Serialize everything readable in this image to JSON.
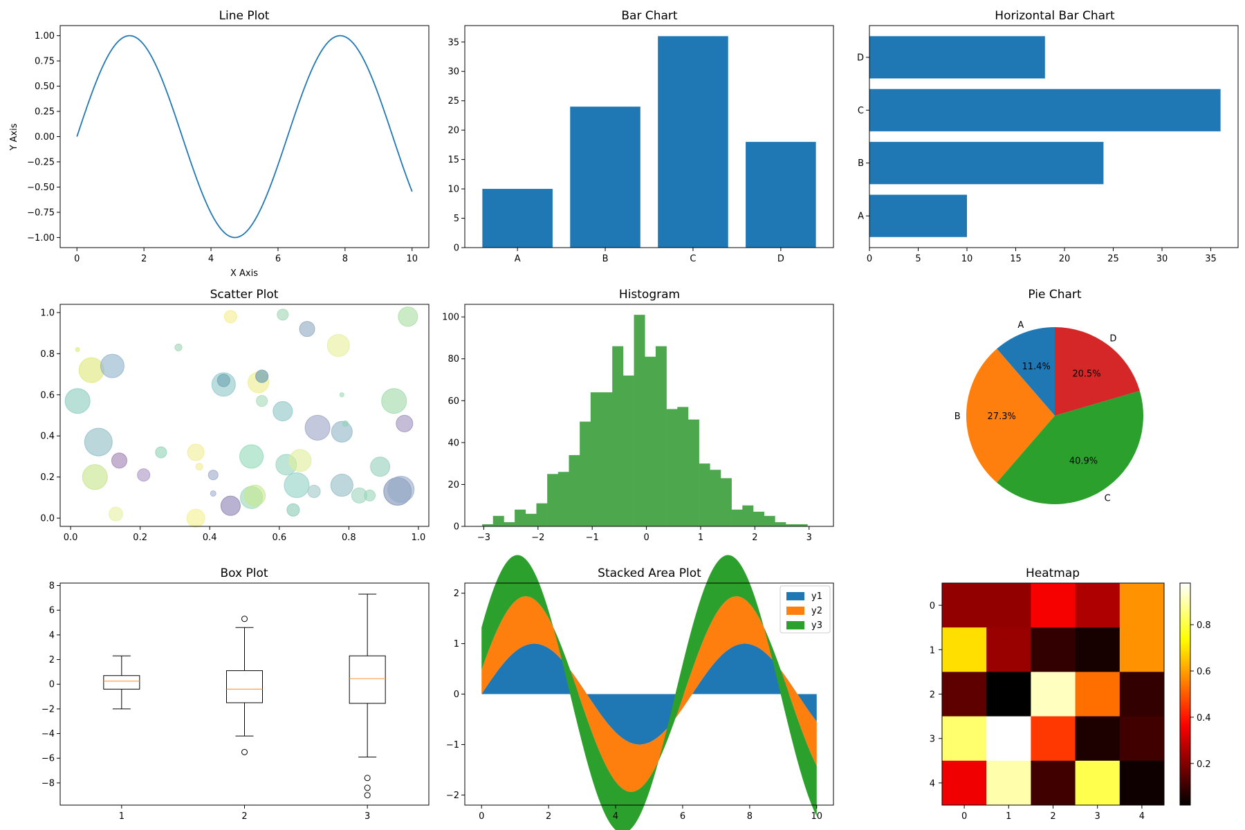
{
  "colors": {
    "blue": "#1f77b4",
    "orange": "#ff7f0e",
    "green": "#2ca02c",
    "red": "#d62728",
    "hist_green": "#4da84d",
    "median": "#ff9f4a"
  },
  "chart_data": [
    {
      "id": "line",
      "type": "line",
      "title": "Line Plot",
      "xlabel": "X Axis",
      "ylabel": "Y Axis",
      "xlim": [
        -0.5,
        10.5
      ],
      "ylim": [
        -1.1,
        1.1
      ],
      "xticks": [
        0,
        2,
        4,
        6,
        8,
        10
      ],
      "yticks": [
        -1.0,
        -0.75,
        -0.5,
        -0.25,
        0.0,
        0.25,
        0.5,
        0.75,
        1.0
      ],
      "ytick_labels": [
        "−1.00",
        "−0.75",
        "−0.50",
        "−0.25",
        "0.00",
        "0.25",
        "0.50",
        "0.75",
        "1.00"
      ],
      "function": "sin(x)",
      "x_range": [
        0,
        10
      ]
    },
    {
      "id": "bar",
      "type": "bar",
      "title": "Bar Chart",
      "categories": [
        "A",
        "B",
        "C",
        "D"
      ],
      "values": [
        10,
        24,
        36,
        18
      ],
      "ylim": [
        0,
        37.8
      ],
      "yticks": [
        0,
        5,
        10,
        15,
        20,
        25,
        30,
        35
      ]
    },
    {
      "id": "hbar",
      "type": "bar",
      "orientation": "horizontal",
      "title": "Horizontal Bar Chart",
      "categories": [
        "A",
        "B",
        "C",
        "D"
      ],
      "values": [
        10,
        24,
        36,
        18
      ],
      "xlim": [
        0,
        37.8
      ],
      "xticks": [
        0,
        5,
        10,
        15,
        20,
        25,
        30,
        35
      ]
    },
    {
      "id": "scatter",
      "type": "scatter",
      "title": "Scatter Plot",
      "xlim": [
        -0.03,
        1.03
      ],
      "ylim": [
        -0.04,
        1.04
      ],
      "xticks": [
        0.0,
        0.2,
        0.4,
        0.6,
        0.8,
        1.0
      ],
      "yticks": [
        0.0,
        0.2,
        0.4,
        0.6,
        0.8,
        1.0
      ],
      "x": [
        0.02,
        0.06,
        0.07,
        0.08,
        0.12,
        0.13,
        0.14,
        0.21,
        0.26,
        0.31,
        0.36,
        0.36,
        0.37,
        0.41,
        0.41,
        0.44,
        0.44,
        0.46,
        0.46,
        0.52,
        0.52,
        0.53,
        0.54,
        0.55,
        0.55,
        0.55,
        0.61,
        0.61,
        0.62,
        0.64,
        0.65,
        0.66,
        0.68,
        0.7,
        0.71,
        0.77,
        0.78,
        0.78,
        0.78,
        0.79,
        0.83,
        0.86,
        0.89,
        0.93,
        0.94,
        0.95,
        0.96,
        0.97,
        0.02
      ],
      "y": [
        0.57,
        0.72,
        0.2,
        0.37,
        0.74,
        0.02,
        0.28,
        0.21,
        0.32,
        0.83,
        0.32,
        0.0,
        0.25,
        0.21,
        0.12,
        0.65,
        0.67,
        0.98,
        0.06,
        0.1,
        0.3,
        0.11,
        0.66,
        0.57,
        0.69,
        0.69,
        0.99,
        0.52,
        0.26,
        0.04,
        0.16,
        0.28,
        0.92,
        0.13,
        0.44,
        0.84,
        0.42,
        0.6,
        0.16,
        0.46,
        0.11,
        0.11,
        0.25,
        0.57,
        0.13,
        0.14,
        0.46,
        0.98,
        0.82
      ],
      "sizes": [
        18,
        18,
        18,
        20,
        17,
        10,
        11,
        9,
        8,
        5,
        12,
        13,
        5,
        7,
        4,
        17,
        9,
        9,
        14,
        16,
        17,
        15,
        15,
        8,
        9,
        9,
        8,
        14,
        15,
        9,
        18,
        16,
        11,
        9,
        18,
        16,
        15,
        3,
        16,
        4,
        11,
        8,
        14,
        18,
        20,
        19,
        12,
        14,
        3
      ],
      "colors": [
        "#88ccbb",
        "#dde877",
        "#c6e48b",
        "#8fbcc4",
        "#8fb2c9",
        "#e7f0a0",
        "#9d7fb0",
        "#a895c4",
        "#8dd4b4",
        "#9ed6b4",
        "#f0ec95",
        "#f4f08c",
        "#f0ec95",
        "#9ba8c9",
        "#a0b0d0",
        "#8fc6c6",
        "#6ba3b3",
        "#f3ed8e",
        "#8b7fb0",
        "#98d6b8",
        "#8fd8b8",
        "#c6e98d",
        "#eded8a",
        "#a6dbb8",
        "#9ddcb4",
        "#7b9eb3",
        "#9ed6b4",
        "#8dc4c4",
        "#95d4bf",
        "#88c9b2",
        "#8fd0c4",
        "#e0ee9a",
        "#90a8c0",
        "#a2c8c8",
        "#9ba3c4",
        "#e6ee9a",
        "#8fb6c6",
        "#9ddcb4",
        "#92bcc6",
        "#8ed4b4",
        "#9cd4be",
        "#9ad6b9",
        "#94cfbd",
        "#9fd8a8",
        "#7c8fb3",
        "#96aac8",
        "#9e90bc",
        "#a8dca0",
        "#dfe87a"
      ]
    },
    {
      "id": "hist",
      "type": "bar",
      "subtype": "histogram",
      "title": "Histogram",
      "bin_start": -3.03,
      "bin_width": 0.2,
      "values": [
        1,
        5,
        2,
        8,
        6,
        11,
        25,
        26,
        34,
        50,
        64,
        64,
        86,
        72,
        101,
        81,
        86,
        56,
        57,
        51,
        30,
        27,
        23,
        8,
        10,
        7,
        5,
        2,
        1,
        1
      ],
      "xlim": [
        -3.35,
        3.45
      ],
      "ylim": [
        0,
        106
      ],
      "xticks": [
        -3,
        -2,
        -1,
        0,
        1,
        2,
        3
      ],
      "xtick_labels": [
        "−3",
        "−2",
        "−1",
        "0",
        "1",
        "2",
        "3"
      ],
      "yticks": [
        0,
        20,
        40,
        60,
        80,
        100
      ]
    },
    {
      "id": "pie",
      "type": "pie",
      "title": "Pie Chart",
      "labels": [
        "A",
        "B",
        "C",
        "D"
      ],
      "values": [
        10,
        24,
        36,
        18
      ],
      "pct_labels": [
        "11.4%",
        "27.3%",
        "40.9%",
        "20.5%"
      ],
      "start_angle": 90
    },
    {
      "id": "box",
      "type": "box",
      "title": "Box Plot",
      "categories": [
        "1",
        "2",
        "3"
      ],
      "boxes": [
        {
          "whislo": -2.0,
          "q1": -0.4,
          "med": 0.25,
          "q3": 0.7,
          "whishi": 2.3,
          "fliers": []
        },
        {
          "whislo": -4.2,
          "q1": -1.5,
          "med": -0.4,
          "q3": 1.1,
          "whishi": 4.6,
          "fliers": [
            5.3,
            -5.5
          ]
        },
        {
          "whislo": -5.9,
          "q1": -1.55,
          "med": 0.45,
          "q3": 2.3,
          "whishi": 7.3,
          "fliers": [
            -7.6,
            -8.4,
            -9.0
          ]
        }
      ],
      "ylim": [
        -9.8,
        8.2
      ],
      "yticks": [
        -8,
        -6,
        -4,
        -2,
        0,
        2,
        4,
        6,
        8
      ],
      "ytick_labels": [
        "−8",
        "−6",
        "−4",
        "−2",
        "0",
        "2",
        "4",
        "6",
        "8"
      ]
    },
    {
      "id": "area",
      "type": "area",
      "subtype": "stacked",
      "title": "Stacked Area Plot",
      "series": [
        {
          "name": "y1",
          "function": "sin(x)"
        },
        {
          "name": "y2",
          "function": "sin(x+0.5)"
        },
        {
          "name": "y3",
          "function": "sin(x+1)"
        }
      ],
      "x_range": [
        0,
        10
      ],
      "xlim": [
        -0.5,
        10.5
      ],
      "ylim": [
        -2.2,
        2.2
      ],
      "xticks": [
        0,
        2,
        4,
        6,
        8,
        10
      ],
      "yticks": [
        -2,
        -1,
        0,
        1,
        2
      ],
      "ytick_labels": [
        "−2",
        "−1",
        "0",
        "1",
        "2"
      ],
      "legend": "top-right"
    },
    {
      "id": "heatmap",
      "type": "heatmap",
      "title": "Heatmap",
      "colormap": "hot",
      "matrix": [
        [
          0.22,
          0.22,
          0.36,
          0.26,
          0.58
        ],
        [
          0.69,
          0.23,
          0.09,
          0.05,
          0.58
        ],
        [
          0.15,
          0.02,
          0.92,
          0.53,
          0.09
        ],
        [
          0.84,
          0.98,
          0.45,
          0.06,
          0.11
        ],
        [
          0.35,
          0.9,
          0.11,
          0.81,
          0.04
        ]
      ],
      "xticks": [
        "0",
        "1",
        "2",
        "3",
        "4"
      ],
      "yticks": [
        "0",
        "1",
        "2",
        "3",
        "4"
      ],
      "colorbar": {
        "min": 0.02,
        "max": 0.98,
        "ticks": [
          0.2,
          0.4,
          0.6,
          0.8
        ],
        "tick_labels": [
          "0.2",
          "0.4",
          "0.6",
          "0.8"
        ]
      }
    }
  ]
}
